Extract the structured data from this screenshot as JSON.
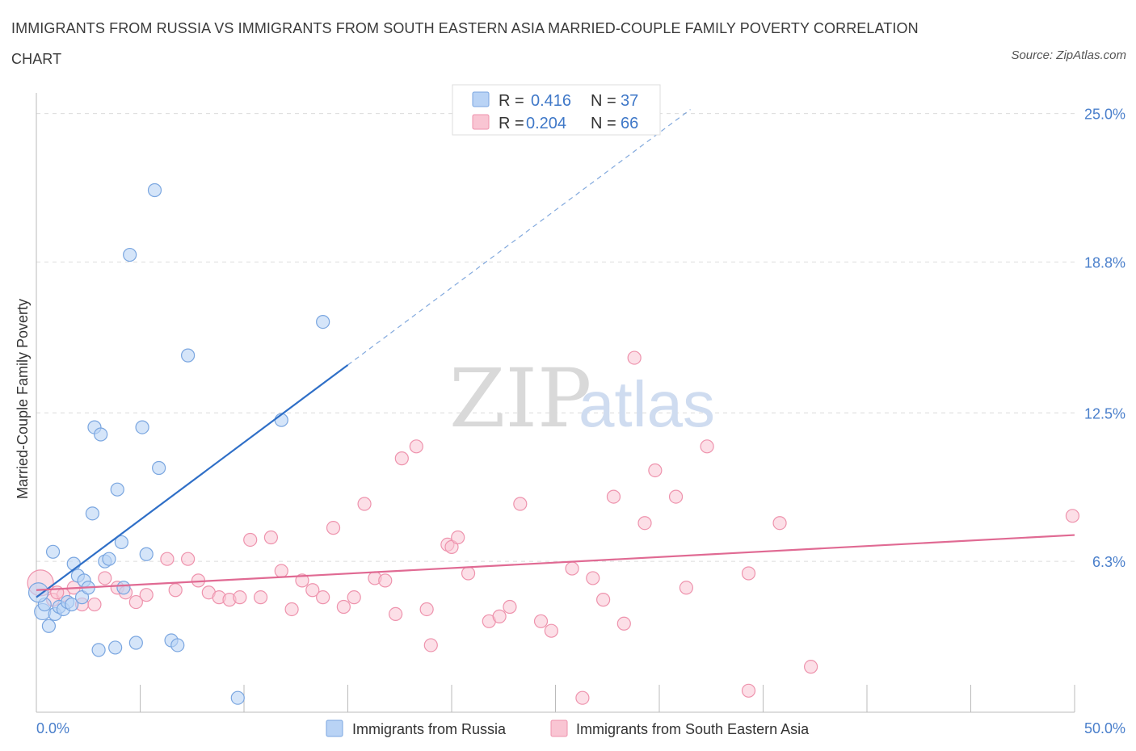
{
  "title": "IMMIGRANTS FROM RUSSIA VS IMMIGRANTS FROM SOUTH EASTERN ASIA MARRIED-COUPLE FAMILY POVERTY CORRELATION CHART",
  "source": "Source: ZipAtlas.com",
  "watermark": {
    "zip": "ZIP",
    "atlas": "atlas"
  },
  "colors": {
    "russia_fill": "#b9d3f5",
    "russia_stroke": "#7aa6e0",
    "russia_line": "#2f6fc7",
    "sea_fill": "#f9c5d3",
    "sea_stroke": "#ee93ad",
    "sea_line": "#e06a93",
    "grid": "#dcdcdc",
    "tick_label": "#4a7fcb"
  },
  "legend_top": {
    "r_label": "R =",
    "n_label": "N =",
    "russia_r": "0.416",
    "russia_n": "37",
    "sea_r": "0.204",
    "sea_n": "66"
  },
  "chart_data": {
    "type": "scatter",
    "xlabel": "",
    "ylabel": "Married-Couple Family Poverty",
    "xlim": [
      0,
      50
    ],
    "ylim": [
      0,
      26.2
    ],
    "x_ticks": [
      0,
      5,
      10,
      15,
      20,
      25,
      30,
      35,
      40,
      45,
      50
    ],
    "x_tick_labels": [
      {
        "value": 0,
        "label": "0.0%"
      },
      {
        "value": 50,
        "label": "50.0%"
      }
    ],
    "y_ticks": [
      {
        "value": 6.3,
        "label": "6.3%"
      },
      {
        "value": 12.5,
        "label": "12.5%"
      },
      {
        "value": 18.8,
        "label": "18.8%"
      },
      {
        "value": 25.0,
        "label": "25.0%"
      }
    ],
    "grid": true,
    "series": [
      {
        "name": "Immigrants from Russia",
        "r": 0.416,
        "n": 37,
        "trend": {
          "x0": 0,
          "y0": 4.8,
          "x1": 15,
          "y1": 14.5,
          "dash_to_x": 31.5
        },
        "points": [
          {
            "x": 0.3,
            "y": 4.2,
            "s": 10
          },
          {
            "x": 0.4,
            "y": 4.5
          },
          {
            "x": 0.6,
            "y": 3.6
          },
          {
            "x": 0.8,
            "y": 6.7
          },
          {
            "x": 0.9,
            "y": 4.1
          },
          {
            "x": 1.1,
            "y": 4.4
          },
          {
            "x": 1.3,
            "y": 4.3
          },
          {
            "x": 1.5,
            "y": 4.6
          },
          {
            "x": 1.7,
            "y": 4.5
          },
          {
            "x": 1.8,
            "y": 6.2
          },
          {
            "x": 2.0,
            "y": 5.7
          },
          {
            "x": 2.2,
            "y": 4.8
          },
          {
            "x": 2.3,
            "y": 5.5
          },
          {
            "x": 2.5,
            "y": 5.2
          },
          {
            "x": 2.7,
            "y": 8.3
          },
          {
            "x": 2.8,
            "y": 11.9
          },
          {
            "x": 3.1,
            "y": 11.6
          },
          {
            "x": 3.3,
            "y": 6.3
          },
          {
            "x": 3.5,
            "y": 6.4
          },
          {
            "x": 3.0,
            "y": 2.6
          },
          {
            "x": 3.8,
            "y": 2.7
          },
          {
            "x": 3.9,
            "y": 9.3
          },
          {
            "x": 4.1,
            "y": 7.1
          },
          {
            "x": 4.2,
            "y": 5.2
          },
          {
            "x": 4.5,
            "y": 19.1
          },
          {
            "x": 4.8,
            "y": 2.9
          },
          {
            "x": 5.1,
            "y": 11.9
          },
          {
            "x": 5.3,
            "y": 6.6
          },
          {
            "x": 5.7,
            "y": 21.8
          },
          {
            "x": 5.9,
            "y": 10.2
          },
          {
            "x": 6.5,
            "y": 3.0
          },
          {
            "x": 6.8,
            "y": 2.8
          },
          {
            "x": 7.3,
            "y": 14.9
          },
          {
            "x": 9.7,
            "y": 0.6
          },
          {
            "x": 11.8,
            "y": 12.2
          },
          {
            "x": 13.8,
            "y": 16.3
          },
          {
            "x": 0.1,
            "y": 5.0,
            "s": 12
          }
        ]
      },
      {
        "name": "Immigrants from South Eastern Asia",
        "r": 0.204,
        "n": 66,
        "trend": {
          "x0": 0,
          "y0": 5.1,
          "x1": 50,
          "y1": 7.4
        },
        "points": [
          {
            "x": 0.2,
            "y": 5.4,
            "s": 16
          },
          {
            "x": 0.8,
            "y": 4.7
          },
          {
            "x": 1.3,
            "y": 4.9
          },
          {
            "x": 1.8,
            "y": 5.2
          },
          {
            "x": 2.2,
            "y": 4.5
          },
          {
            "x": 2.8,
            "y": 4.5
          },
          {
            "x": 3.3,
            "y": 5.6
          },
          {
            "x": 3.9,
            "y": 5.2
          },
          {
            "x": 4.3,
            "y": 5.0
          },
          {
            "x": 4.8,
            "y": 4.6
          },
          {
            "x": 5.3,
            "y": 4.9
          },
          {
            "x": 6.3,
            "y": 6.4
          },
          {
            "x": 6.7,
            "y": 5.1
          },
          {
            "x": 7.3,
            "y": 6.4
          },
          {
            "x": 7.8,
            "y": 5.5
          },
          {
            "x": 8.3,
            "y": 5.0
          },
          {
            "x": 8.8,
            "y": 4.8
          },
          {
            "x": 9.3,
            "y": 4.7
          },
          {
            "x": 9.8,
            "y": 4.8
          },
          {
            "x": 10.3,
            "y": 7.2
          },
          {
            "x": 10.8,
            "y": 4.8
          },
          {
            "x": 11.3,
            "y": 7.3
          },
          {
            "x": 11.8,
            "y": 5.9
          },
          {
            "x": 12.3,
            "y": 4.3
          },
          {
            "x": 12.8,
            "y": 5.5
          },
          {
            "x": 13.3,
            "y": 5.1
          },
          {
            "x": 13.8,
            "y": 4.8
          },
          {
            "x": 14.3,
            "y": 7.7
          },
          {
            "x": 14.8,
            "y": 4.4
          },
          {
            "x": 15.3,
            "y": 4.8
          },
          {
            "x": 15.8,
            "y": 8.7
          },
          {
            "x": 16.3,
            "y": 5.6
          },
          {
            "x": 16.8,
            "y": 5.5
          },
          {
            "x": 17.3,
            "y": 4.1
          },
          {
            "x": 17.6,
            "y": 10.6
          },
          {
            "x": 18.3,
            "y": 11.1
          },
          {
            "x": 18.8,
            "y": 4.3
          },
          {
            "x": 19.0,
            "y": 2.8
          },
          {
            "x": 19.8,
            "y": 7.0
          },
          {
            "x": 20.0,
            "y": 6.9
          },
          {
            "x": 20.3,
            "y": 7.3
          },
          {
            "x": 20.8,
            "y": 5.8
          },
          {
            "x": 21.8,
            "y": 3.8
          },
          {
            "x": 22.3,
            "y": 4.0
          },
          {
            "x": 22.8,
            "y": 4.4
          },
          {
            "x": 23.3,
            "y": 8.7
          },
          {
            "x": 24.3,
            "y": 3.8
          },
          {
            "x": 24.8,
            "y": 3.4
          },
          {
            "x": 25.8,
            "y": 6.0
          },
          {
            "x": 26.3,
            "y": 0.6
          },
          {
            "x": 26.8,
            "y": 5.6
          },
          {
            "x": 27.3,
            "y": 4.7
          },
          {
            "x": 27.8,
            "y": 9.0
          },
          {
            "x": 28.3,
            "y": 3.7
          },
          {
            "x": 28.8,
            "y": 14.8
          },
          {
            "x": 29.3,
            "y": 7.9
          },
          {
            "x": 29.8,
            "y": 10.1
          },
          {
            "x": 30.8,
            "y": 9.0
          },
          {
            "x": 31.3,
            "y": 5.2
          },
          {
            "x": 32.3,
            "y": 11.1
          },
          {
            "x": 34.3,
            "y": 5.8
          },
          {
            "x": 35.8,
            "y": 7.9
          },
          {
            "x": 34.3,
            "y": 0.9
          },
          {
            "x": 37.3,
            "y": 1.9
          },
          {
            "x": 49.9,
            "y": 8.2
          },
          {
            "x": 1.0,
            "y": 5.0
          }
        ]
      }
    ]
  },
  "legend_bottom": [
    {
      "label": "Immigrants from Russia"
    },
    {
      "label": "Immigrants from South Eastern Asia"
    }
  ]
}
